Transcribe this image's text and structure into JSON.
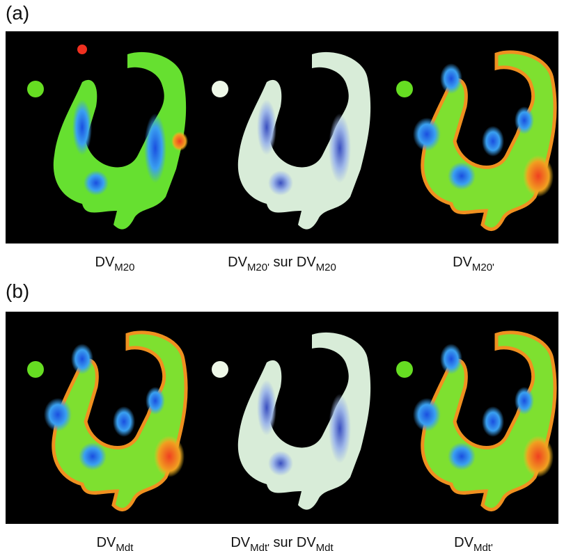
{
  "panels": [
    {
      "label": "(a)",
      "captions": [
        [
          "DV",
          "M20"
        ],
        [
          "DV",
          "M20'",
          " sur DV",
          "M20"
        ],
        [
          "DV",
          "M20'"
        ]
      ]
    },
    {
      "label": "(b)",
      "captions": [
        [
          "DV",
          "Mdt"
        ],
        [
          "DV",
          "Mdt'",
          " sur DV",
          "Mdt"
        ],
        [
          "DV",
          "Mdt'"
        ]
      ]
    }
  ]
}
